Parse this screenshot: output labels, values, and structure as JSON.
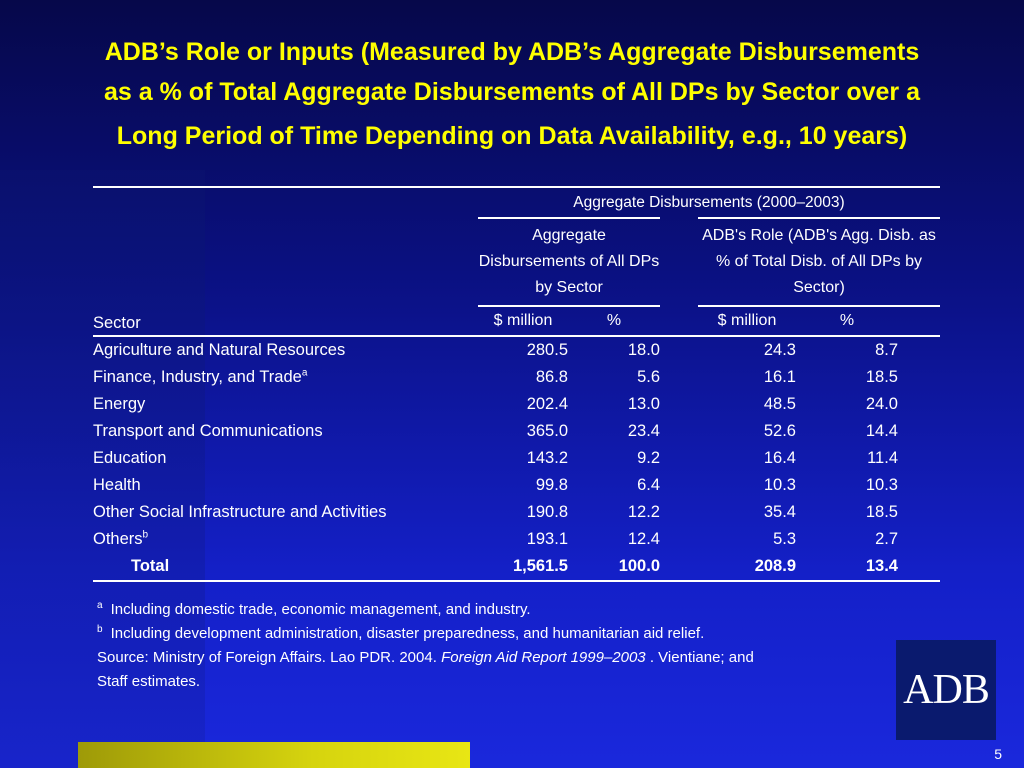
{
  "title": {
    "line1": "ADB’s Role or Inputs (Measured by ADB’s Aggregate Disbursements",
    "line2": "as a % of Total Aggregate Disbursements of All DPs by Sector over a",
    "line3": "Long Period of Time Depending on Data Availability, e.g., 10 years)"
  },
  "table": {
    "group_header": "Aggregate Disbursements (2000–2003)",
    "sub_header_1": "Aggregate Disbursements of All DPs by Sector",
    "sub_header_2": "ADB's Role (ADB's Agg. Disb. as % of Total Disb. of All DPs by Sector)",
    "sector_header": "Sector",
    "unit_million_1": "$ million",
    "unit_pct_1": "%",
    "unit_million_2": "$ million",
    "unit_pct_2": "%",
    "rows": [
      {
        "sector": "Agriculture and Natural Resources",
        "sup": "",
        "all_million": "280.5",
        "all_pct": "18.0",
        "adb_million": "24.3",
        "adb_pct": "8.7"
      },
      {
        "sector": "Finance, Industry, and Trade",
        "sup": "a",
        "all_million": "86.8",
        "all_pct": "5.6",
        "adb_million": "16.1",
        "adb_pct": "18.5"
      },
      {
        "sector": "Energy",
        "sup": "",
        "all_million": "202.4",
        "all_pct": "13.0",
        "adb_million": "48.5",
        "adb_pct": "24.0"
      },
      {
        "sector": "Transport and Communications",
        "sup": "",
        "all_million": "365.0",
        "all_pct": "23.4",
        "adb_million": "52.6",
        "adb_pct": "14.4"
      },
      {
        "sector": "Education",
        "sup": "",
        "all_million": "143.2",
        "all_pct": "9.2",
        "adb_million": "16.4",
        "adb_pct": "11.4"
      },
      {
        "sector": "Health",
        "sup": "",
        "all_million": "99.8",
        "all_pct": "6.4",
        "adb_million": "10.3",
        "adb_pct": "10.3"
      },
      {
        "sector": "Other Social Infrastructure and Activities",
        "sup": "",
        "all_million": "190.8",
        "all_pct": "12.2",
        "adb_million": "35.4",
        "adb_pct": "18.5"
      },
      {
        "sector": "Others",
        "sup": "b",
        "all_million": "193.1",
        "all_pct": "12.4",
        "adb_million": "5.3",
        "adb_pct": "2.7"
      }
    ],
    "total": {
      "sector": "Total",
      "all_million": "1,561.5",
      "all_pct": "100.0",
      "adb_million": "208.9",
      "adb_pct": "13.4"
    }
  },
  "notes": {
    "fn_a_mark": "a",
    "fn_a_text": "Including domestic trade, economic management, and industry.",
    "fn_b_mark": "b",
    "fn_b_text": "Including development administration, disaster preparedness, and humanitarian aid relief.",
    "source_prefix": "Source: Ministry of Foreign Affairs. Lao PDR. 2004. ",
    "source_italic": "Foreign Aid Report 1999–2003",
    "source_suffix": " . Vientiane; and",
    "source_line2": "Staff estimates."
  },
  "logo_text": "ADB",
  "page_number": "5",
  "colors": {
    "title": "#ffff00",
    "background": "#1420c8",
    "bar": "#d6d40e"
  }
}
